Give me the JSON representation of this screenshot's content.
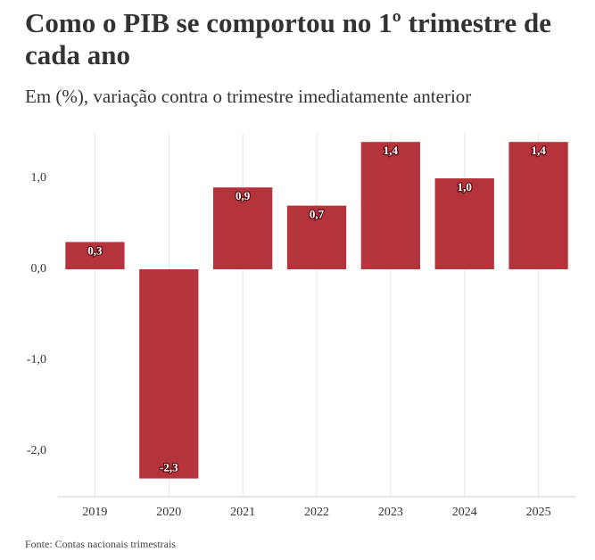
{
  "chart_data": {
    "type": "bar",
    "title": "Como o PIB se comportou no 1º trimestre de cada ano",
    "subtitle": "Em (%), variação contra o trimestre imediatamente anterior",
    "source": "Fonte: Contas nacionais trimestrais",
    "categories": [
      "2019",
      "2020",
      "2021",
      "2022",
      "2023",
      "2024",
      "2025"
    ],
    "values": [
      0.3,
      -2.3,
      0.9,
      0.7,
      1.4,
      1.0,
      1.4
    ],
    "value_labels": [
      "0,3",
      "-2,3",
      "0,9",
      "0,7",
      "1,4",
      "1,0",
      "1,4"
    ],
    "color": "#b5343c",
    "ylim": [
      -2.5,
      1.5
    ],
    "yticks": [
      {
        "value": -2,
        "label": "-2,0"
      },
      {
        "value": -1,
        "label": "-1,0"
      },
      {
        "value": 0,
        "label": "0,0"
      },
      {
        "value": 1,
        "label": "1,0"
      }
    ],
    "grid": "x"
  }
}
